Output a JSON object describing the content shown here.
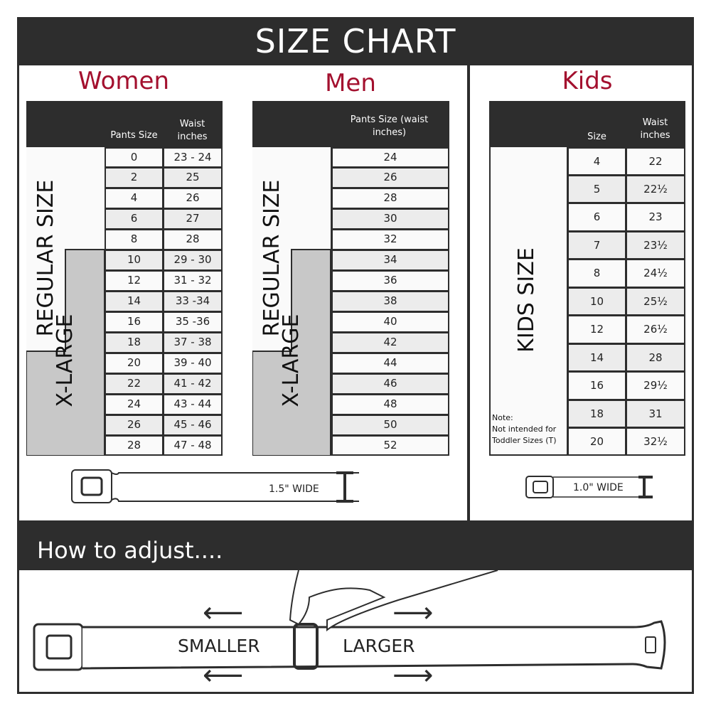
{
  "title": "SIZE CHART",
  "women": {
    "title": "Women",
    "col1": "Pants Size",
    "col2": "Waist inches",
    "regular_label": "REGULAR SIZE",
    "xlarge_label": "X-LARGE",
    "rows": [
      [
        "0",
        "23 - 24"
      ],
      [
        "2",
        "25"
      ],
      [
        "4",
        "26"
      ],
      [
        "6",
        "27"
      ],
      [
        "8",
        "28"
      ],
      [
        "10",
        "29 - 30"
      ],
      [
        "12",
        "31 - 32"
      ],
      [
        "14",
        "33 -34"
      ],
      [
        "16",
        "35 -36"
      ],
      [
        "18",
        "37 - 38"
      ],
      [
        "20",
        "39 - 40"
      ],
      [
        "22",
        "41 - 42"
      ],
      [
        "24",
        "43 - 44"
      ],
      [
        "26",
        "45 - 46"
      ],
      [
        "28",
        "47 - 48"
      ]
    ],
    "width_label": "1.5\" WIDE"
  },
  "men": {
    "title": "Men",
    "col1": "Pants Size (waist inches)",
    "regular_label": "REGULAR SIZE",
    "xlarge_label": "X-LARGE",
    "rows": [
      "24",
      "26",
      "28",
      "30",
      "32",
      "34",
      "36",
      "38",
      "40",
      "42",
      "44",
      "46",
      "48",
      "50",
      "52"
    ]
  },
  "kids": {
    "title": "Kids",
    "col1": "Size",
    "col2": "Waist inches",
    "label": "KIDS SIZE",
    "note_title": "Note:",
    "note_line1": "Not intended for",
    "note_line2": "Toddler Sizes (T)",
    "rows": [
      [
        "4",
        "22"
      ],
      [
        "5",
        "22½"
      ],
      [
        "6",
        "23"
      ],
      [
        "7",
        "23½"
      ],
      [
        "8",
        "24½"
      ],
      [
        "10",
        "25½"
      ],
      [
        "12",
        "26½"
      ],
      [
        "14",
        "28"
      ],
      [
        "16",
        "29½"
      ],
      [
        "18",
        "31"
      ],
      [
        "20",
        "32½"
      ]
    ],
    "width_label": "1.0\" WIDE"
  },
  "adjust": {
    "title": "How to adjust....",
    "smaller": "SMALLER",
    "larger": "LARGER"
  },
  "colors": {
    "dark": "#2d2d2d",
    "accent": "#a3102e",
    "xlarge_fill": "#c8c8c8"
  }
}
